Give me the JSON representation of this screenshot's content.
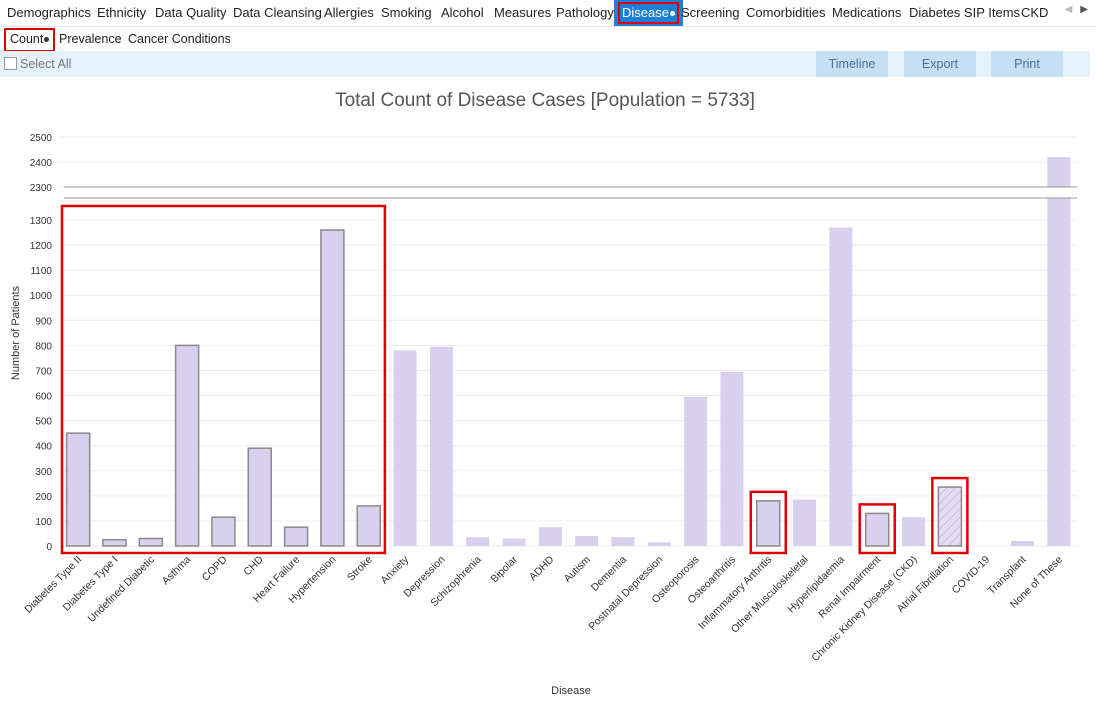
{
  "tabs": [
    {
      "label": "Demographics"
    },
    {
      "label": "Ethnicity"
    },
    {
      "label": "Data Quality"
    },
    {
      "label": "Data Cleansing"
    },
    {
      "label": "Allergies"
    },
    {
      "label": "Smoking"
    },
    {
      "label": "Alcohol"
    },
    {
      "label": "Measures"
    },
    {
      "label": "Pathology"
    },
    {
      "label": "Disease",
      "active": true
    },
    {
      "label": "Screening"
    },
    {
      "label": "Comorbidities"
    },
    {
      "label": "Medications"
    },
    {
      "label": "Diabetes SIP Items"
    },
    {
      "label": "CKD"
    }
  ],
  "subtabs": [
    {
      "label": "Count",
      "active": true
    },
    {
      "label": "Prevalence"
    },
    {
      "label": "Cancer Conditions"
    }
  ],
  "toolbar": {
    "select_all_label": "Select All",
    "timeline_label": "Timeline",
    "export_label": "Export",
    "print_label": "Print"
  },
  "colors": {
    "accent": "#1f7fd6",
    "bar": "#d9cfee",
    "highlight": "#e00000",
    "toolbar_bg": "#e6f2fb",
    "button_bg": "#c5dff4"
  },
  "chart_data": {
    "type": "bar",
    "title": "Total Count of Disease Cases [Population = 5733]",
    "xlabel": "Disease",
    "ylabel": "Number of Patients",
    "y_axis_break": {
      "lower_range": [
        0,
        1300
      ],
      "upper_range": [
        2300,
        2500
      ]
    },
    "yticks_lower": [
      0,
      100,
      200,
      300,
      400,
      500,
      600,
      700,
      800,
      900,
      1000,
      1100,
      1200,
      1300
    ],
    "yticks_upper": [
      2300,
      2400,
      2500
    ],
    "grid": true,
    "categories": [
      "Diabetes Type II",
      "Diabetes Type I",
      "Undefined Diabetic",
      "Asthma",
      "COPD",
      "CHD",
      "Heart Failure",
      "Hypertension",
      "Stroke",
      "Anxiety",
      "Depression",
      "Schizophrenia",
      "Bipolar",
      "ADHD",
      "Autism",
      "Dementia",
      "Postnatal Depression",
      "Osteoporosis",
      "Osteoarthritis",
      "Inflammatory Arthritis",
      "Other Musculoskeletal",
      "Hyperlipidaemia",
      "Renal Impairment",
      "Chronic Kidney Disease (CKD)",
      "Atrial Fibrillation",
      "COVID-19",
      "Transplant",
      "None of These"
    ],
    "values": [
      450,
      25,
      30,
      800,
      115,
      390,
      75,
      1260,
      160,
      780,
      795,
      35,
      30,
      75,
      40,
      35,
      15,
      595,
      695,
      180,
      185,
      1270,
      130,
      115,
      235,
      0,
      20,
      2420
    ],
    "selected": [
      "Diabetes Type II",
      "Diabetes Type I",
      "Undefined Diabetic",
      "Asthma",
      "COPD",
      "CHD",
      "Heart Failure",
      "Hypertension",
      "Stroke",
      "Inflammatory Arthritis",
      "Renal Impairment",
      "Atrial Fibrillation"
    ],
    "hatched": [
      "Atrial Fibrillation"
    ]
  }
}
